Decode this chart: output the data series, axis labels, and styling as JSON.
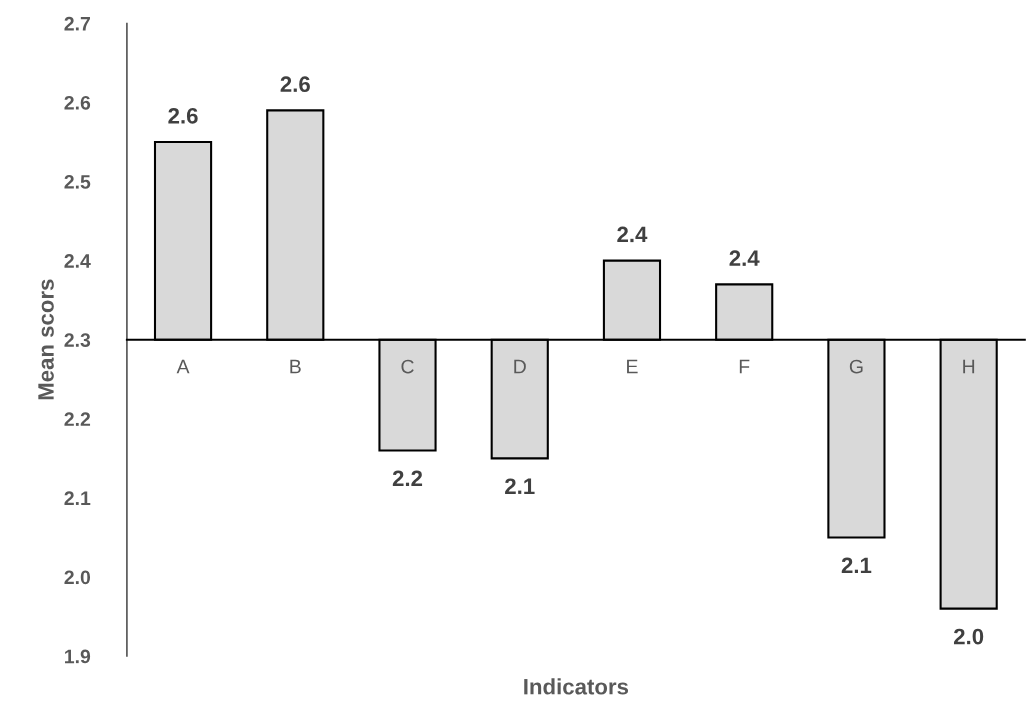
{
  "chart_data": {
    "type": "bar",
    "xlabel": "Indicators",
    "ylabel": "Mean scors",
    "categories": [
      "A",
      "B",
      "C",
      "D",
      "E",
      "F",
      "G",
      "H"
    ],
    "base": [
      2.3,
      2.3,
      2.3,
      2.3,
      2.3,
      2.3,
      2.3,
      2.3
    ],
    "values": [
      0.25,
      0.29,
      -0.14,
      -0.15,
      0.1,
      0.07,
      -0.25,
      -0.34
    ],
    "value_labels": [
      "2.6",
      "2.6",
      "2.2",
      "2.1",
      "2.4",
      "2.4",
      "2.1",
      "2.0"
    ],
    "color": "#d9d9d9",
    "ylim": [
      1.9,
      2.7
    ],
    "yticks": [
      {
        "value": 1.9,
        "label": "1.9"
      },
      {
        "value": 2.0,
        "label": "2.0"
      },
      {
        "value": 2.1,
        "label": "2.1"
      },
      {
        "value": 2.2,
        "label": "2.2"
      },
      {
        "value": 2.3,
        "label": "2.3"
      },
      {
        "value": 2.4,
        "label": "2.4"
      },
      {
        "value": 2.5,
        "label": "2.5"
      },
      {
        "value": 2.6,
        "label": "2.6"
      },
      {
        "value": 2.7,
        "label": "2.7"
      }
    ],
    "grid": false,
    "legend": false
  }
}
